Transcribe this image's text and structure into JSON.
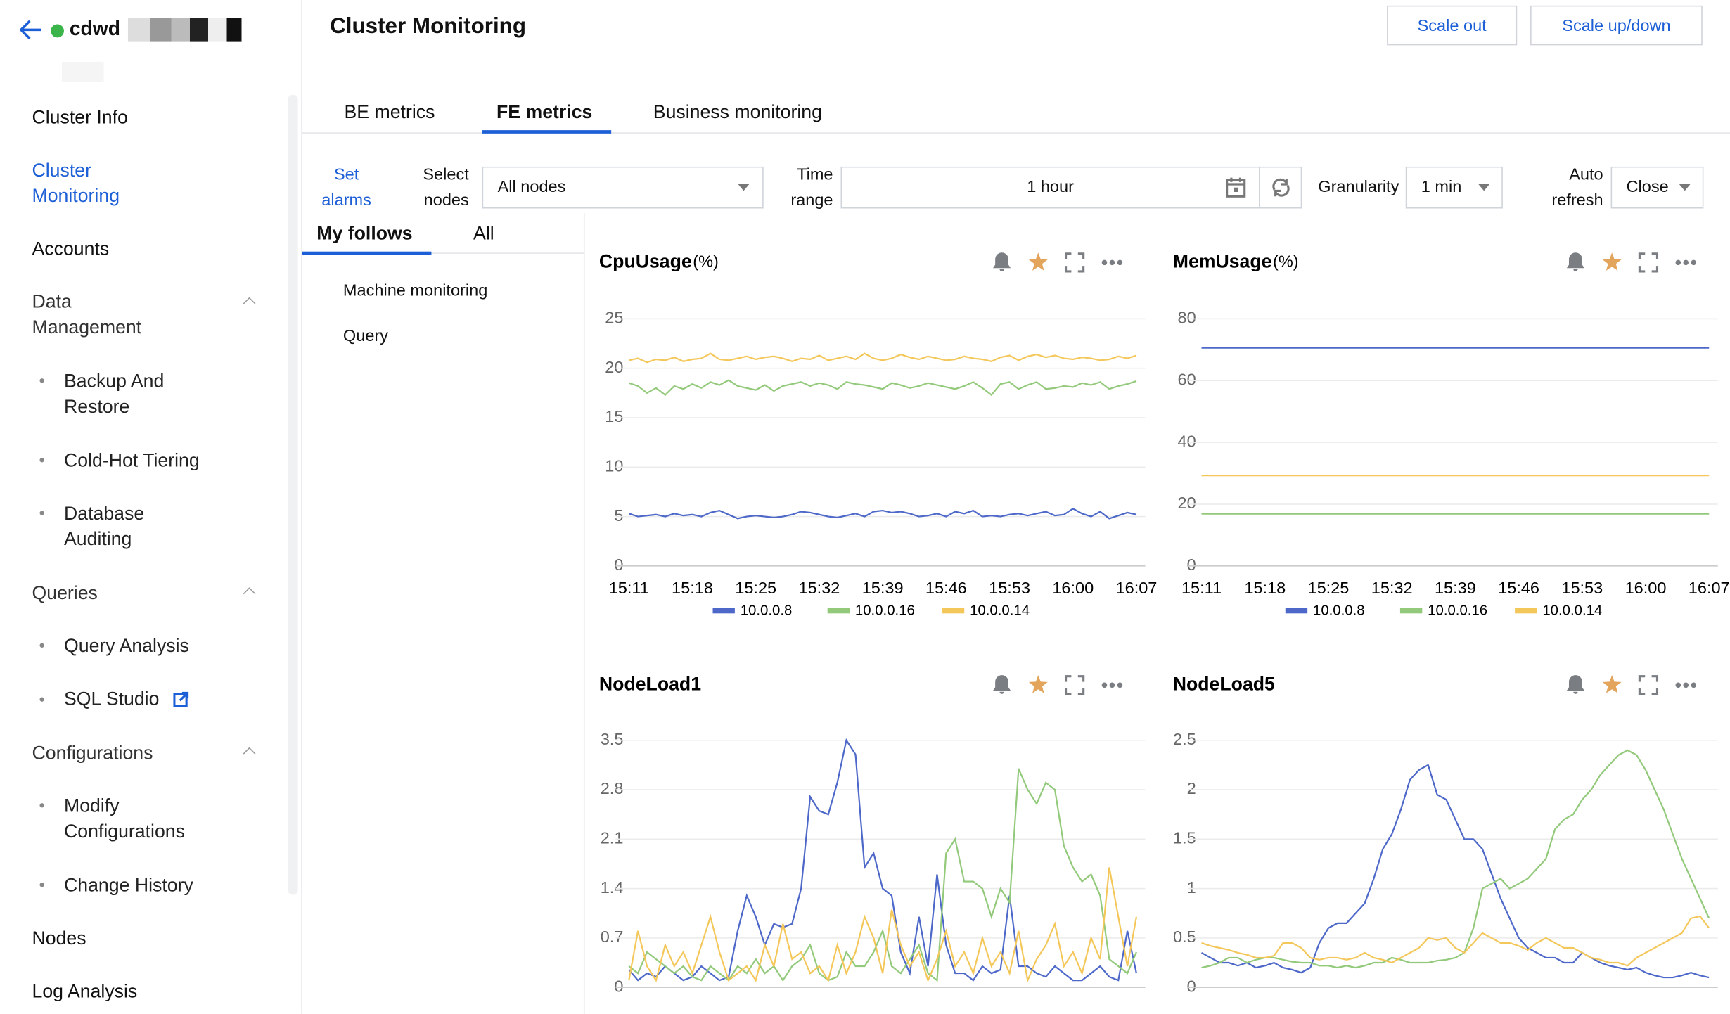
{
  "header": {
    "app_name": "cdwd",
    "title": "Cluster Monitoring",
    "buttons": [
      "Scale out",
      "Scale up/down"
    ]
  },
  "sidebar": {
    "items": [
      {
        "label": "Cluster Info"
      },
      {
        "label": "Cluster Monitoring",
        "active": true
      },
      {
        "label": "Accounts"
      },
      {
        "label": "Data Management",
        "children": [
          "Backup And Restore",
          "Cold-Hot Tiering",
          "Database Auditing"
        ]
      },
      {
        "label": "Queries",
        "children": [
          "Query Analysis",
          "SQL Studio"
        ]
      },
      {
        "label": "Configurations",
        "children": [
          "Modify Configurations",
          "Change History"
        ]
      },
      {
        "label": "Nodes"
      },
      {
        "label": "Log Analysis"
      }
    ]
  },
  "tabs": {
    "items": [
      "BE metrics",
      "FE metrics",
      "Business monitoring"
    ],
    "active": 1
  },
  "filters": {
    "set_alarms": "Set alarms",
    "select_nodes_label": "Select nodes",
    "select_nodes_value": "All nodes",
    "time_range_label": "Time range",
    "time_range_value": "1 hour",
    "granularity_label": "Granularity",
    "granularity_value": "1 min",
    "auto_refresh_label": "Auto refresh",
    "auto_refresh_value": "Close"
  },
  "follow_tabs": {
    "items": [
      "My follows",
      "All"
    ],
    "active": 0
  },
  "follow_list": [
    "Machine monitoring",
    "Query"
  ],
  "chart_data": [
    {
      "type": "line",
      "title": "CpuUsage",
      "unit": "(%)",
      "categories": [
        "15:11",
        null,
        null,
        null,
        null,
        null,
        null,
        "15:18",
        null,
        null,
        null,
        null,
        null,
        null,
        "15:25",
        null,
        null,
        null,
        null,
        null,
        null,
        "15:32",
        null,
        null,
        null,
        null,
        null,
        null,
        "15:39",
        null,
        null,
        null,
        null,
        null,
        null,
        "15:46",
        null,
        null,
        null,
        null,
        null,
        null,
        "15:53",
        null,
        null,
        null,
        null,
        null,
        null,
        "16:00",
        null,
        null,
        null,
        null,
        null,
        null,
        "16:07"
      ],
      "ylim": [
        0,
        25
      ],
      "yticks": [
        0,
        5,
        10,
        15,
        20,
        25
      ],
      "grid": true,
      "series": [
        {
          "name": "10.0.0.8",
          "color": "#4d68c8",
          "values": [
            5.3,
            5.0,
            5.1,
            5.2,
            5.0,
            5.3,
            5.1,
            5.2,
            5.0,
            5.4,
            5.6,
            5.2,
            4.8,
            5.0,
            5.1,
            5.0,
            4.9,
            5.0,
            5.2,
            5.5,
            5.4,
            5.2,
            5.0,
            4.9,
            5.1,
            5.3,
            5.0,
            5.5,
            5.6,
            5.4,
            5.5,
            5.3,
            5.0,
            5.1,
            5.3,
            5.0,
            5.5,
            5.3,
            5.6,
            5.0,
            5.1,
            5.0,
            5.2,
            5.3,
            5.1,
            5.3,
            5.5,
            5.1,
            5.2,
            5.8,
            5.3,
            5.0,
            5.5,
            4.8,
            5.1,
            5.4,
            5.2
          ]
        },
        {
          "name": "10.0.0.16",
          "color": "#93c97a",
          "values": [
            18.5,
            18.2,
            17.5,
            18.0,
            17.3,
            18.2,
            17.9,
            18.4,
            18.0,
            18.6,
            18.3,
            18.8,
            18.2,
            18.0,
            17.8,
            18.3,
            17.7,
            18.2,
            18.4,
            18.6,
            18.2,
            18.5,
            18.3,
            17.9,
            18.6,
            18.4,
            18.3,
            18.1,
            17.9,
            18.5,
            18.3,
            18.0,
            18.2,
            18.5,
            18.3,
            18.1,
            17.9,
            18.2,
            18.6,
            18.0,
            17.3,
            18.4,
            18.6,
            17.9,
            18.3,
            18.6,
            17.9,
            18.0,
            18.2,
            18.1,
            18.5,
            18.3,
            18.6,
            17.9,
            18.2,
            18.4,
            18.7
          ]
        },
        {
          "name": "10.0.0.14",
          "color": "#f4c75a",
          "values": [
            20.8,
            21.0,
            20.6,
            20.9,
            20.8,
            21.1,
            20.7,
            20.9,
            21.0,
            21.5,
            20.9,
            20.8,
            21.0,
            21.2,
            20.9,
            21.1,
            21.2,
            21.0,
            20.7,
            21.0,
            20.9,
            21.3,
            20.8,
            21.0,
            21.2,
            20.9,
            21.5,
            21.0,
            20.8,
            21.0,
            21.4,
            21.1,
            20.9,
            21.2,
            21.0,
            20.8,
            20.9,
            21.2,
            21.0,
            20.9,
            20.7,
            21.1,
            21.3,
            20.8,
            21.2,
            21.4,
            21.1,
            21.3,
            21.0,
            20.9,
            21.1,
            21.0,
            20.8,
            20.9,
            21.2,
            21.0,
            21.3
          ]
        }
      ]
    },
    {
      "type": "line",
      "title": "MemUsage",
      "unit": "(%)",
      "categories": [
        "15:11",
        null,
        null,
        null,
        null,
        null,
        null,
        "15:18",
        null,
        null,
        null,
        null,
        null,
        null,
        "15:25",
        null,
        null,
        null,
        null,
        null,
        null,
        "15:32",
        null,
        null,
        null,
        null,
        null,
        null,
        "15:39",
        null,
        null,
        null,
        null,
        null,
        null,
        "15:46",
        null,
        null,
        null,
        null,
        null,
        null,
        "15:53",
        null,
        null,
        null,
        null,
        null,
        null,
        "16:00",
        null,
        null,
        null,
        null,
        null,
        null,
        "16:07"
      ],
      "ylim": [
        0,
        80
      ],
      "yticks": [
        0,
        20,
        40,
        60,
        80
      ],
      "grid": true,
      "series": [
        {
          "name": "10.0.0.8",
          "color": "#4d68c8",
          "values": [
            70.6,
            70.6,
            70.6,
            70.6,
            70.6,
            70.6,
            70.6,
            70.6,
            70.6,
            70.6,
            70.6,
            70.6,
            70.6,
            70.6,
            70.6,
            70.6,
            70.6,
            70.6,
            70.6,
            70.6,
            70.6,
            70.6,
            70.6,
            70.6,
            70.6,
            70.6,
            70.6,
            70.6,
            70.6,
            70.6,
            70.6,
            70.6,
            70.6,
            70.6,
            70.6,
            70.6,
            70.6,
            70.6,
            70.6,
            70.6,
            70.6,
            70.6,
            70.6,
            70.6,
            70.6,
            70.6,
            70.6,
            70.6,
            70.6,
            70.6,
            70.6,
            70.6,
            70.6,
            70.6,
            70.6,
            70.6,
            70.6
          ]
        },
        {
          "name": "10.0.0.16",
          "color": "#93c97a",
          "values": [
            16.9,
            16.9,
            16.9,
            16.9,
            16.9,
            16.9,
            16.9,
            16.9,
            16.9,
            16.9,
            16.9,
            16.9,
            16.9,
            16.9,
            16.9,
            16.9,
            16.9,
            16.9,
            16.9,
            16.9,
            16.9,
            16.9,
            16.9,
            16.9,
            16.9,
            16.9,
            16.9,
            16.9,
            16.9,
            16.9,
            16.9,
            16.9,
            16.9,
            16.9,
            16.9,
            16.9,
            16.9,
            16.9,
            16.9,
            16.9,
            16.9,
            16.9,
            16.9,
            16.9,
            16.9,
            16.9,
            16.9,
            16.9,
            16.9,
            16.9,
            16.9,
            16.9,
            16.9,
            16.9,
            16.9,
            16.9,
            16.9
          ]
        },
        {
          "name": "10.0.0.14",
          "color": "#f4c75a",
          "values": [
            29.3,
            29.3,
            29.3,
            29.3,
            29.3,
            29.3,
            29.3,
            29.3,
            29.3,
            29.3,
            29.3,
            29.3,
            29.3,
            29.3,
            29.3,
            29.3,
            29.3,
            29.3,
            29.3,
            29.3,
            29.3,
            29.3,
            29.3,
            29.3,
            29.3,
            29.3,
            29.3,
            29.3,
            29.3,
            29.3,
            29.3,
            29.3,
            29.3,
            29.3,
            29.3,
            29.3,
            29.3,
            29.3,
            29.3,
            29.3,
            29.3,
            29.3,
            29.3,
            29.3,
            29.3,
            29.3,
            29.3,
            29.3,
            29.3,
            29.3,
            29.3,
            29.3,
            29.3,
            29.3,
            29.3,
            29.3,
            29.3
          ]
        }
      ]
    },
    {
      "type": "line",
      "title": "NodeLoad1",
      "ylim": [
        0,
        3.5
      ],
      "yticks": [
        0,
        0.7,
        1.4,
        2.1,
        2.8,
        3.5
      ],
      "grid": true,
      "series": [
        {
          "color": "#4d68c8",
          "values": [
            0.25,
            0.1,
            0.2,
            0.15,
            0.3,
            0.2,
            0.1,
            0.15,
            0.3,
            0.2,
            0.1,
            0.15,
            0.8,
            1.3,
            1.0,
            0.6,
            0.9,
            0.85,
            0.9,
            1.4,
            2.7,
            2.5,
            2.45,
            2.9,
            3.5,
            3.3,
            1.7,
            1.9,
            1.4,
            1.3,
            0.5,
            0.2,
            1.0,
            0.3,
            1.6,
            0.6,
            0.2,
            0.2,
            0.1,
            0.3,
            0.2,
            0.25,
            1.3,
            0.3,
            0.3,
            0.2,
            0.15,
            0.3,
            0.2,
            0.1,
            0.1,
            0.2,
            0.3,
            0.15,
            0.1,
            0.8,
            0.2
          ]
        },
        {
          "color": "#93c97a",
          "values": [
            0.3,
            0.2,
            0.5,
            0.4,
            0.3,
            0.2,
            0.3,
            0.15,
            0.1,
            0.3,
            0.2,
            0.1,
            0.3,
            0.2,
            0.4,
            0.2,
            0.3,
            0.1,
            0.3,
            0.4,
            0.6,
            0.2,
            0.1,
            0.15,
            0.5,
            0.3,
            0.3,
            0.5,
            0.8,
            0.3,
            0.2,
            0.4,
            0.6,
            0.2,
            0.1,
            1.9,
            2.1,
            1.5,
            1.5,
            1.4,
            1.0,
            1.4,
            1.2,
            3.1,
            2.8,
            2.6,
            2.9,
            2.8,
            2.0,
            1.7,
            1.5,
            1.6,
            1.3,
            0.4,
            0.3,
            0.2,
            0.5
          ]
        },
        {
          "color": "#f4c75a",
          "values": [
            0.1,
            0.8,
            0.3,
            0.1,
            0.6,
            0.3,
            0.5,
            0.2,
            0.6,
            1.0,
            0.5,
            0.1,
            0.2,
            0.3,
            0.1,
            0.6,
            0.3,
            0.9,
            0.4,
            0.5,
            0.2,
            0.3,
            0.1,
            0.6,
            0.2,
            0.5,
            1.0,
            0.7,
            0.2,
            1.1,
            0.6,
            0.3,
            0.5,
            0.1,
            0.4,
            0.8,
            0.3,
            0.5,
            0.2,
            0.7,
            0.3,
            0.5,
            0.2,
            0.8,
            0.1,
            0.4,
            0.6,
            0.9,
            0.3,
            0.5,
            0.2,
            0.7,
            0.4,
            1.7,
            1.0,
            0.3,
            1.0
          ]
        }
      ]
    },
    {
      "type": "line",
      "title": "NodeLoad5",
      "ylim": [
        0,
        2.5
      ],
      "yticks": [
        0,
        0.5,
        1,
        1.5,
        2,
        2.5
      ],
      "grid": true,
      "series": [
        {
          "color": "#4d68c8",
          "values": [
            0.35,
            0.3,
            0.25,
            0.25,
            0.22,
            0.25,
            0.2,
            0.22,
            0.25,
            0.2,
            0.18,
            0.15,
            0.2,
            0.45,
            0.6,
            0.65,
            0.65,
            0.75,
            0.85,
            1.1,
            1.4,
            1.55,
            1.8,
            2.1,
            2.2,
            2.25,
            1.95,
            1.9,
            1.7,
            1.5,
            1.5,
            1.4,
            1.15,
            0.9,
            0.7,
            0.5,
            0.4,
            0.35,
            0.3,
            0.3,
            0.25,
            0.25,
            0.35,
            0.3,
            0.25,
            0.22,
            0.2,
            0.18,
            0.2,
            0.15,
            0.12,
            0.1,
            0.1,
            0.12,
            0.15,
            0.12,
            0.1
          ]
        },
        {
          "color": "#93c97a",
          "values": [
            0.2,
            0.22,
            0.25,
            0.3,
            0.3,
            0.25,
            0.28,
            0.3,
            0.3,
            0.28,
            0.26,
            0.25,
            0.25,
            0.22,
            0.22,
            0.2,
            0.22,
            0.2,
            0.22,
            0.25,
            0.25,
            0.3,
            0.28,
            0.25,
            0.25,
            0.25,
            0.27,
            0.28,
            0.3,
            0.35,
            0.6,
            1.0,
            1.05,
            1.1,
            1.0,
            1.05,
            1.1,
            1.2,
            1.3,
            1.6,
            1.7,
            1.75,
            1.9,
            2.0,
            2.15,
            2.25,
            2.35,
            2.4,
            2.35,
            2.2,
            2.0,
            1.8,
            1.55,
            1.3,
            1.1,
            0.9,
            0.7
          ]
        },
        {
          "color": "#f4c75a",
          "values": [
            0.45,
            0.42,
            0.4,
            0.38,
            0.35,
            0.33,
            0.3,
            0.3,
            0.32,
            0.45,
            0.45,
            0.4,
            0.3,
            0.28,
            0.3,
            0.3,
            0.28,
            0.3,
            0.35,
            0.3,
            0.28,
            0.25,
            0.3,
            0.35,
            0.4,
            0.5,
            0.48,
            0.5,
            0.4,
            0.35,
            0.45,
            0.55,
            0.5,
            0.45,
            0.45,
            0.42,
            0.38,
            0.45,
            0.5,
            0.45,
            0.4,
            0.4,
            0.35,
            0.3,
            0.28,
            0.25,
            0.25,
            0.22,
            0.3,
            0.35,
            0.4,
            0.45,
            0.5,
            0.55,
            0.7,
            0.72,
            0.6
          ]
        }
      ]
    }
  ]
}
